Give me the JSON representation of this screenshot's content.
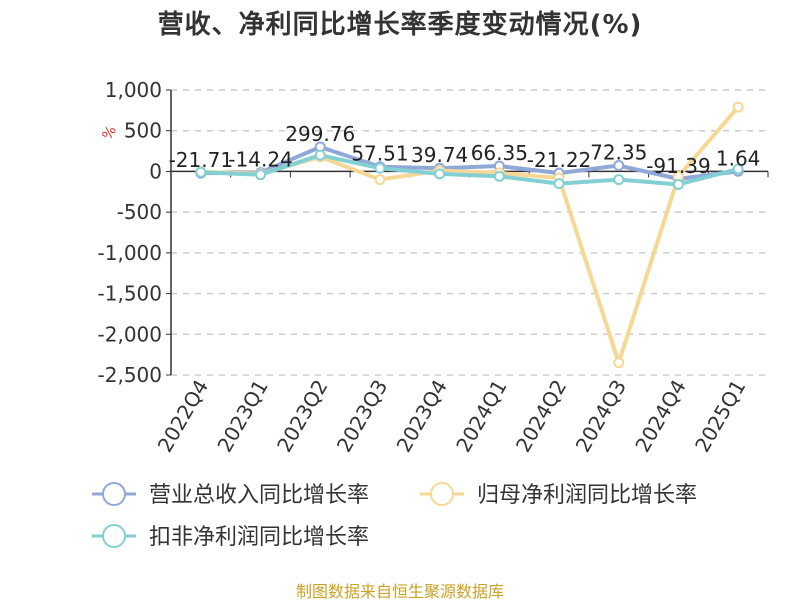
{
  "chart_data": {
    "type": "line",
    "title": "营收、净利同比增长率季度变动情况(%)",
    "source": "制图数据来自恒生聚源数据库",
    "ylabel": "%",
    "xlabel": "",
    "ylim": [
      -2500,
      1000
    ],
    "yticks": [
      1000,
      500,
      0,
      -500,
      -1000,
      -1500,
      -2000,
      -2500
    ],
    "ytick_labels": [
      "1,000",
      "500",
      "0",
      "-500",
      "-1,000",
      "-1,500",
      "-2,000",
      "-2,500"
    ],
    "grid": true,
    "legend_position": "bottom",
    "categories": [
      "2022Q4",
      "2023Q1",
      "2023Q2",
      "2023Q3",
      "2023Q4",
      "2024Q1",
      "2024Q2",
      "2024Q3",
      "2024Q4",
      "2025Q1"
    ],
    "series": [
      {
        "name": "营业总收入同比增长率",
        "color": "#8fa8d8",
        "values": [
          -21.71,
          -14.24,
          299.76,
          57.51,
          39.74,
          66.35,
          -21.22,
          72.35,
          -91.39,
          1.64
        ],
        "labels": [
          "-21.71",
          "-14.24",
          "299.76",
          "57.51",
          "39.74",
          "66.35",
          "-21.22",
          "72.35",
          "-91.39",
          "1.64"
        ]
      },
      {
        "name": "归母净利润同比增长率",
        "color": "#f7d794",
        "values": [
          -5,
          -30,
          180,
          -100,
          10,
          -20,
          -80,
          -2350,
          -60,
          790
        ]
      },
      {
        "name": "扣非净利润同比增长率",
        "color": "#82d0d4",
        "values": [
          -10,
          -40,
          200,
          40,
          -30,
          -60,
          -150,
          -100,
          -160,
          30
        ]
      }
    ]
  }
}
